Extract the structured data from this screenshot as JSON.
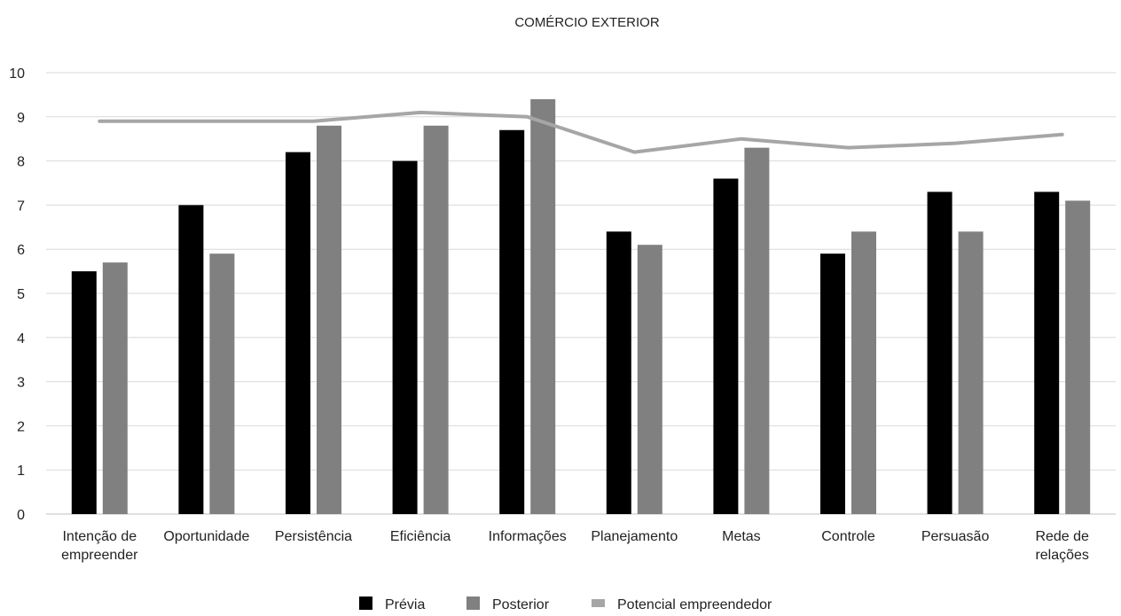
{
  "chart_data": {
    "type": "bar",
    "title": "COMÉRCIO EXTERIOR",
    "categories": [
      [
        "Intenção de",
        "empreender"
      ],
      [
        "Oportunidade"
      ],
      [
        "Persistência"
      ],
      [
        "Eficiência"
      ],
      [
        "Informações"
      ],
      [
        "Planejamento"
      ],
      [
        "Metas"
      ],
      [
        "Controle"
      ],
      [
        "Persuasão"
      ],
      [
        "Rede de",
        "relações"
      ]
    ],
    "ylim": [
      0,
      10
    ],
    "yticks": [
      "0",
      "1",
      "2",
      "3",
      "4",
      "5",
      "6",
      "7",
      "8",
      "9",
      "10"
    ],
    "grid": true,
    "legend_position": "bottom",
    "series": [
      {
        "name": "Prévia",
        "kind": "bar",
        "color": "#000000",
        "values": [
          5.5,
          7.0,
          8.2,
          8.0,
          8.7,
          6.4,
          7.6,
          5.9,
          7.3,
          7.3
        ]
      },
      {
        "name": "Posterior",
        "kind": "bar",
        "color": "#808080",
        "values": [
          5.7,
          5.9,
          8.8,
          8.8,
          9.4,
          6.1,
          8.3,
          6.4,
          6.4,
          7.1
        ]
      },
      {
        "name": "Potencial empreendedor",
        "kind": "line",
        "color": "#a6a6a6",
        "values": [
          8.9,
          8.9,
          8.9,
          9.1,
          9.0,
          8.2,
          8.5,
          8.3,
          8.4,
          8.6
        ]
      }
    ]
  }
}
